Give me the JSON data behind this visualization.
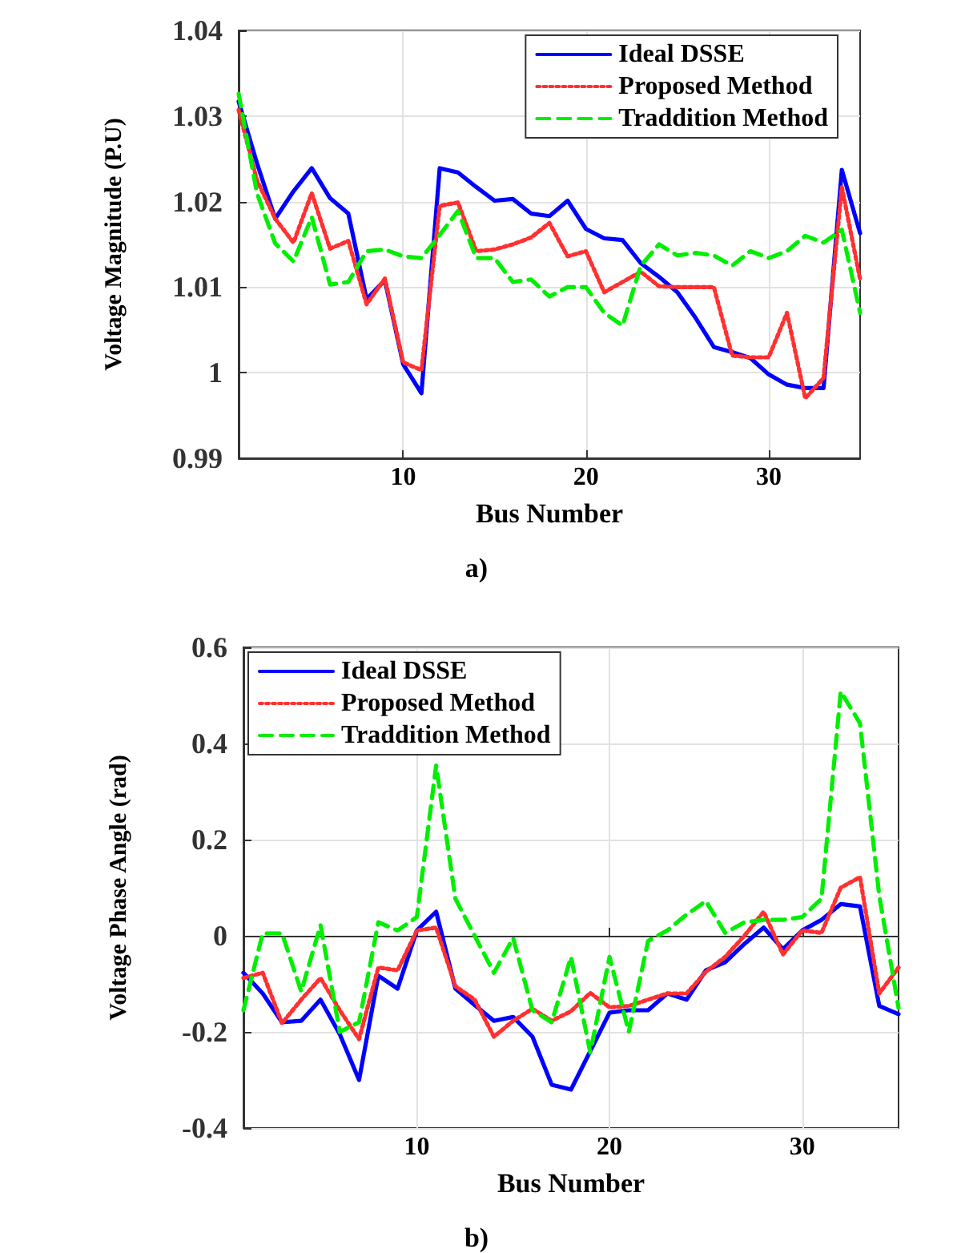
{
  "chart_data": [
    {
      "type": "line",
      "xlabel": "Bus Number",
      "ylabel": "Voltage Magnitude (P.U)",
      "annotations": [
        "a)"
      ],
      "legend": "top right",
      "grid": true,
      "x": [
        1,
        2,
        3,
        4,
        5,
        6,
        7,
        8,
        9,
        10,
        11,
        12,
        13,
        14,
        15,
        16,
        17,
        18,
        19,
        20,
        21,
        22,
        23,
        24,
        25,
        26,
        27,
        28,
        29,
        30,
        31,
        32,
        33,
        34,
        35
      ],
      "xlim": [
        1,
        35
      ],
      "xticks": [
        10,
        20,
        30
      ],
      "ylim": [
        0.99,
        1.04
      ],
      "yticks": [
        0.99,
        1,
        1.01,
        1.02,
        1.03,
        1.04
      ],
      "series": [
        {
          "name": "Ideal DSSE",
          "color": "#0000ff",
          "line_style": "solid",
          "values": [
            1.0317,
            1.0245,
            1.018,
            1.0212,
            1.0239,
            1.0204,
            1.0186,
            1.0086,
            1.0108,
            1.001,
            0.9976,
            1.0239,
            1.0234,
            1.0217,
            1.0201,
            1.0203,
            1.0186,
            1.0183,
            1.0201,
            1.0168,
            1.0157,
            1.0155,
            1.0128,
            1.0112,
            1.0094,
            1.0064,
            1.003,
            1.0024,
            1.0017,
            0.9998,
            0.9986,
            0.9982,
            0.9982,
            1.0237,
            1.0163
          ]
        },
        {
          "name": "Proposed Method",
          "color": "#ff3030",
          "line_style": "dotted",
          "values": [
            1.0307,
            1.0225,
            1.018,
            1.0152,
            1.021,
            1.0145,
            1.0154,
            1.008,
            1.011,
            1.0012,
            1.0003,
            1.0195,
            1.0199,
            1.0142,
            1.0144,
            1.015,
            1.0158,
            1.0175,
            1.0136,
            1.0142,
            1.0094,
            1.0106,
            1.0118,
            1.0101,
            1.01,
            1.01,
            1.01,
            1.002,
            1.0018,
            1.0018,
            1.007,
            0.997,
            0.9994,
            1.0217,
            1.0109
          ]
        },
        {
          "name": "Traddition Method",
          "color": "#00ee00",
          "line_style": "dashed",
          "values": [
            1.0326,
            1.021,
            1.0151,
            1.013,
            1.0182,
            1.0103,
            1.0106,
            1.0142,
            1.0144,
            1.0136,
            1.0134,
            1.0161,
            1.0189,
            1.0134,
            1.0134,
            1.0106,
            1.0109,
            1.0089,
            1.01,
            1.01,
            1.007,
            1.0055,
            1.0125,
            1.015,
            1.0137,
            1.014,
            1.0137,
            1.0125,
            1.0142,
            1.0134,
            1.0142,
            1.016,
            1.0152,
            1.0167,
            1.007
          ]
        }
      ]
    },
    {
      "type": "line",
      "xlabel": "Bus Number",
      "ylabel": "Voltage Phase Angle (rad)",
      "annotations": [
        "b)"
      ],
      "legend": "top left",
      "grid": true,
      "x": [
        1,
        2,
        3,
        4,
        5,
        6,
        7,
        8,
        9,
        10,
        11,
        12,
        13,
        14,
        15,
        16,
        17,
        18,
        19,
        20,
        21,
        22,
        23,
        24,
        25,
        26,
        27,
        28,
        29,
        30,
        31,
        32,
        33,
        34,
        35
      ],
      "xlim": [
        1,
        35
      ],
      "xticks": [
        10,
        20,
        30
      ],
      "ylim": [
        -0.4,
        0.6
      ],
      "yticks": [
        -0.4,
        -0.2,
        0,
        0.2,
        0.4,
        0.6
      ],
      "series": [
        {
          "name": "Ideal DSSE",
          "color": "#0000ff",
          "line_style": "solid",
          "values": [
            -0.077,
            -0.12,
            -0.18,
            -0.177,
            -0.133,
            -0.205,
            -0.3,
            -0.083,
            -0.11,
            0.011,
            0.05,
            -0.11,
            -0.144,
            -0.177,
            -0.169,
            -0.21,
            -0.31,
            -0.32,
            -0.24,
            -0.16,
            -0.155,
            -0.155,
            -0.12,
            -0.133,
            -0.072,
            -0.055,
            -0.017,
            0.017,
            -0.028,
            0.011,
            0.033,
            0.066,
            0.061,
            -0.146,
            -0.163
          ]
        },
        {
          "name": "Proposed Method",
          "color": "#ff3030",
          "line_style": "dotted",
          "values": [
            -0.088,
            -0.077,
            -0.182,
            -0.133,
            -0.088,
            -0.155,
            -0.215,
            -0.066,
            -0.072,
            0.011,
            0.017,
            -0.105,
            -0.133,
            -0.21,
            -0.177,
            -0.152,
            -0.177,
            -0.157,
            -0.119,
            -0.149,
            -0.146,
            -0.133,
            -0.12,
            -0.12,
            -0.075,
            -0.044,
            0,
            0.05,
            -0.039,
            0.011,
            0.006,
            0.1,
            0.122,
            -0.12,
            -0.066
          ]
        },
        {
          "name": "Traddition Method",
          "color": "#00ee00",
          "line_style": "dashed",
          "values": [
            -0.155,
            0.005,
            0.005,
            -0.116,
            0.022,
            -0.2,
            -0.18,
            0.028,
            0.011,
            0.039,
            0.354,
            0.077,
            0,
            -0.077,
            -0.005,
            -0.155,
            -0.18,
            -0.044,
            -0.243,
            -0.044,
            -0.2,
            -0.011,
            0.011,
            0.044,
            0.072,
            0.006,
            0.028,
            0.033,
            0.033,
            0.039,
            0.077,
            0.508,
            0.442,
            0.083,
            -0.15
          ]
        }
      ]
    }
  ]
}
